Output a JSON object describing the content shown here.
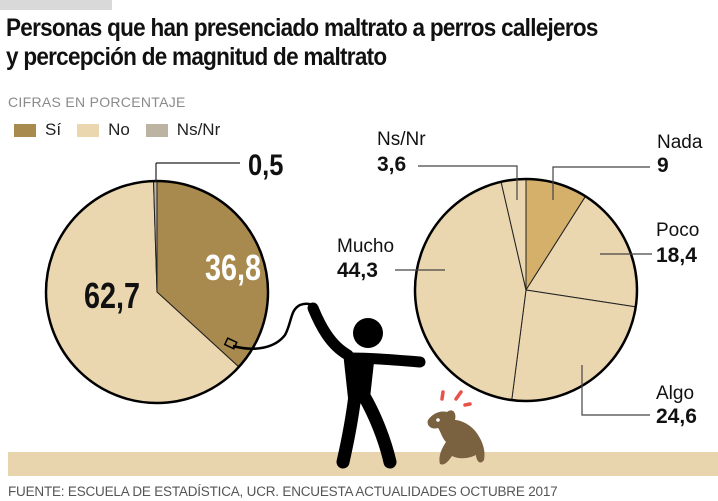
{
  "header": {
    "title_line1": "Personas que han presenciado maltrato a perros callejeros",
    "title_line2": "y percepción de magnitud de maltrato",
    "subtitle": "CIFRAS EN PORCENTAJE"
  },
  "legend": [
    {
      "label": "Sí",
      "color": "#a98a4e"
    },
    {
      "label": "No",
      "color": "#ead7b0"
    },
    {
      "label": "Ns/Nr",
      "color": "#bdb3a3"
    }
  ],
  "chart_data": [
    {
      "type": "pie",
      "title": "Personas que han presenciado maltrato a perros callejeros",
      "slices": [
        {
          "label": "Sí",
          "value": 36.8,
          "display": "36,8",
          "color": "#a98a4e"
        },
        {
          "label": "No",
          "value": 62.7,
          "display": "62,7",
          "color": "#ead7b0"
        },
        {
          "label": "Ns/Nr",
          "value": 0.5,
          "display": "0,5",
          "color": "#bdb3a3"
        }
      ]
    },
    {
      "type": "pie",
      "title": "Percepción de magnitud de maltrato",
      "slices": [
        {
          "label": "Nada",
          "value": 9,
          "display": "9",
          "color": "#d4b06a"
        },
        {
          "label": "Poco",
          "value": 18.4,
          "display": "18,4",
          "color": "#ead7b0"
        },
        {
          "label": "Algo",
          "value": 24.6,
          "display": "24,6",
          "color": "#ead7b0"
        },
        {
          "label": "Mucho",
          "value": 44.3,
          "display": "44,3",
          "color": "#ead7b0"
        },
        {
          "label": "Ns/Nr",
          "value": 3.6,
          "display": "3,6",
          "color": "#ead7b0"
        }
      ]
    }
  ],
  "illustration": {
    "figure_color": "#000000",
    "dog_color": "#7a6140",
    "alarm_color": "#e8524a",
    "ground_color": "#e8d4ad"
  },
  "footer": {
    "source": "FUENTE: ESCUELA DE ESTADÍSTICA, UCR. ENCUESTA ACTUALIDADES OCTUBRE 2017"
  }
}
